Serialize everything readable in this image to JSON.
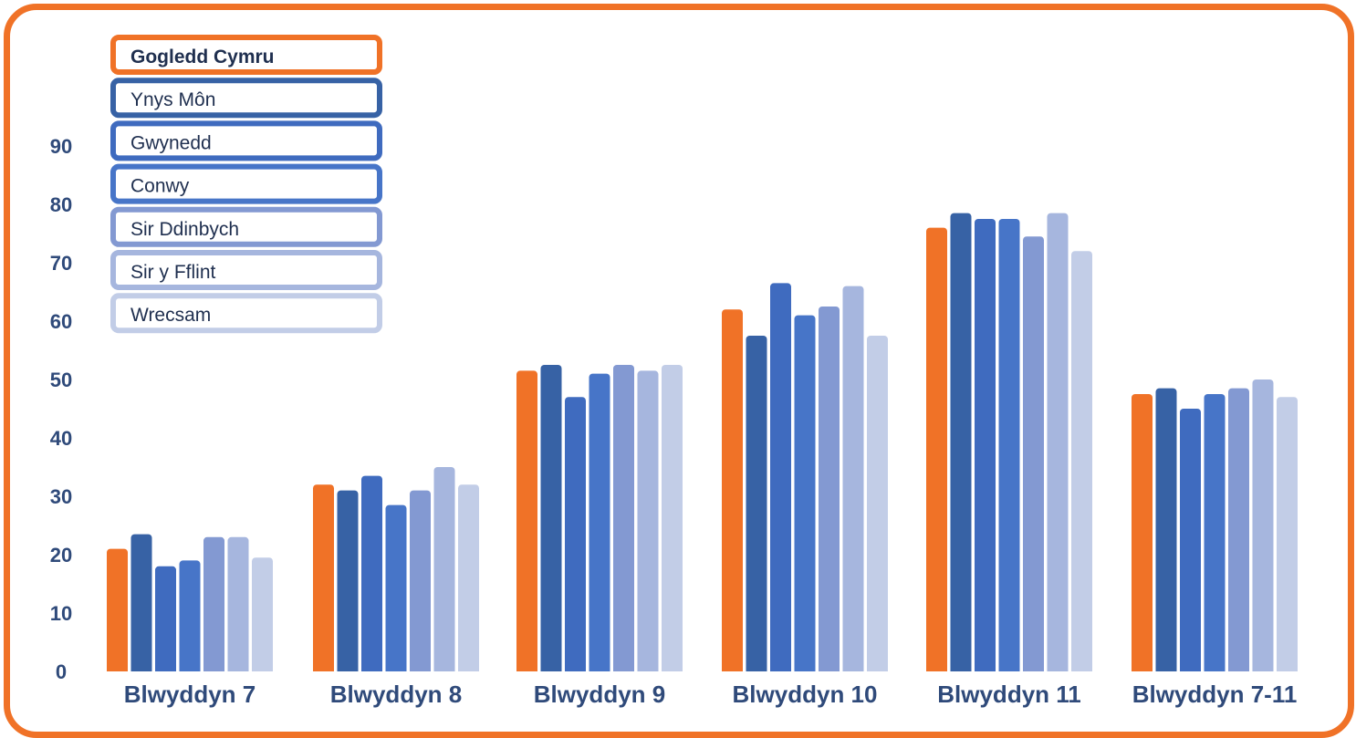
{
  "chart_data": {
    "type": "bar",
    "categories": [
      "Blwyddyn 7",
      "Blwyddyn 8",
      "Blwyddyn 9",
      "Blwyddyn 10",
      "Blwyddyn 11",
      "Blwyddyn 7-11"
    ],
    "ylim": [
      0,
      90
    ],
    "yticks": [
      0,
      10,
      20,
      30,
      40,
      50,
      60,
      70,
      80,
      90
    ],
    "grid": false,
    "legend_position": "top-left",
    "series": [
      {
        "name": "Gogledd Cymru",
        "color": "#F07227",
        "values": [
          21,
          32,
          51.5,
          62,
          76,
          47.5
        ]
      },
      {
        "name": "Ynys Môn",
        "color": "#3762A5",
        "values": [
          23.5,
          31,
          52.5,
          57.5,
          78.5,
          48.5
        ]
      },
      {
        "name": "Gwynedd",
        "color": "#3F6BBF",
        "values": [
          18,
          33.5,
          47,
          66.5,
          77.5,
          45
        ]
      },
      {
        "name": "Conwy",
        "color": "#4775C8",
        "values": [
          19,
          28.5,
          51,
          61,
          77.5,
          47.5
        ]
      },
      {
        "name": "Sir Ddinbych",
        "color": "#8399D2",
        "values": [
          23,
          31,
          52.5,
          62.5,
          74.5,
          48.5
        ]
      },
      {
        "name": "Sir y Fflint",
        "color": "#A6B6DE",
        "values": [
          23,
          35,
          51.5,
          66,
          78.5,
          50
        ]
      },
      {
        "name": "Wrecsam",
        "color": "#C2CDE7",
        "values": [
          19.5,
          32,
          52.5,
          57.5,
          72,
          47
        ]
      }
    ]
  }
}
